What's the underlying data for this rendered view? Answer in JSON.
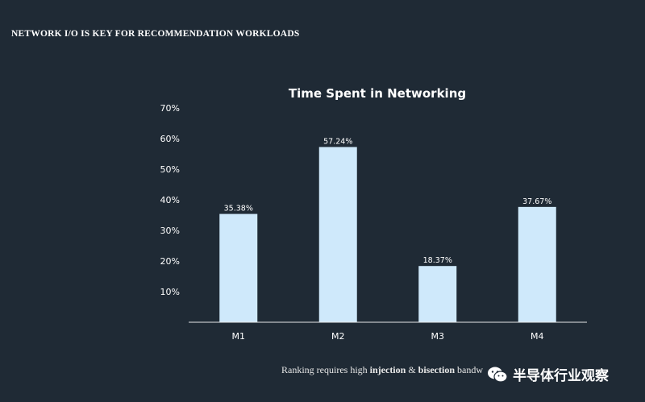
{
  "slide": {
    "title": "NETWORK I/O IS KEY FOR RECOMMENDATION WORKLOADS",
    "footer_pre": "Ranking requires high ",
    "footer_b1": "injection",
    "footer_mid": " & ",
    "footer_b2": "bisection",
    "footer_post": " bandw"
  },
  "watermark": {
    "text": "半导体行业观察",
    "icon": "wechat-icon"
  },
  "colors": {
    "background": "#1f2a35",
    "bar": "#cfe9fb",
    "text": "#ffffff"
  },
  "chart_data": {
    "type": "bar",
    "title": "Time Spent in Networking",
    "categories": [
      "M1",
      "M2",
      "M3",
      "M4"
    ],
    "values": [
      35.38,
      57.24,
      18.37,
      37.67
    ],
    "value_labels": [
      "35.38%",
      "57.24%",
      "18.37%",
      "37.67%"
    ],
    "yticks": [
      "10%",
      "20%",
      "30%",
      "40%",
      "50%",
      "60%",
      "70%"
    ],
    "ylim": [
      0,
      70
    ],
    "xlabel": "",
    "ylabel": "",
    "grid": false,
    "legend": "none"
  }
}
